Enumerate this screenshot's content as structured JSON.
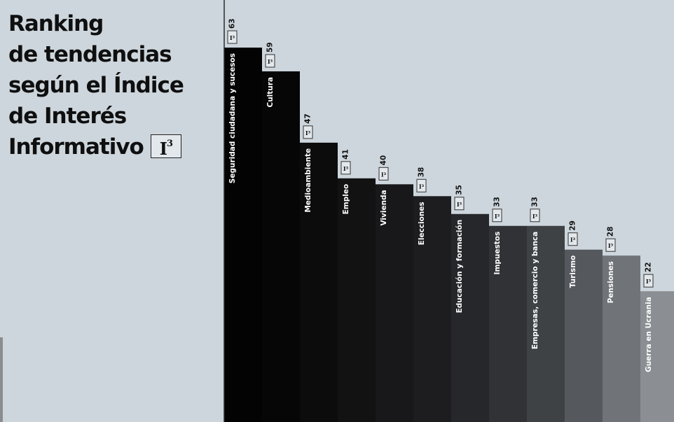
{
  "title": {
    "lines": [
      "Ranking",
      "de tendencias",
      "según el Índice",
      "de Interés",
      "Informativo"
    ],
    "badge_main": "I",
    "badge_sup": "3"
  },
  "chart_data": {
    "type": "bar",
    "categories": [
      "Seguridad ciudadana y sucesos",
      "Cultura",
      "Medioambiente",
      "Empleo",
      "Vivienda",
      "Elecciones",
      "Educación y formación",
      "Impuestos",
      "Empresas, comercio y banca",
      "Turismo",
      "Pensiones",
      "Guerra en Ucrania"
    ],
    "values": [
      63,
      59,
      47,
      41,
      40,
      38,
      35,
      33,
      33,
      29,
      28,
      22
    ],
    "value_badge": "I³",
    "colors": [
      "#030303",
      "#060607",
      "#0c0c0d",
      "#121213",
      "#18181a",
      "#1d1d1f",
      "#26272a",
      "#303235",
      "#3f4245",
      "#55585c",
      "#707377",
      "#8b8e92"
    ],
    "label_color": "#ffffff",
    "axis_color": "#2a2a2a",
    "ylim": [
      0,
      63
    ]
  }
}
